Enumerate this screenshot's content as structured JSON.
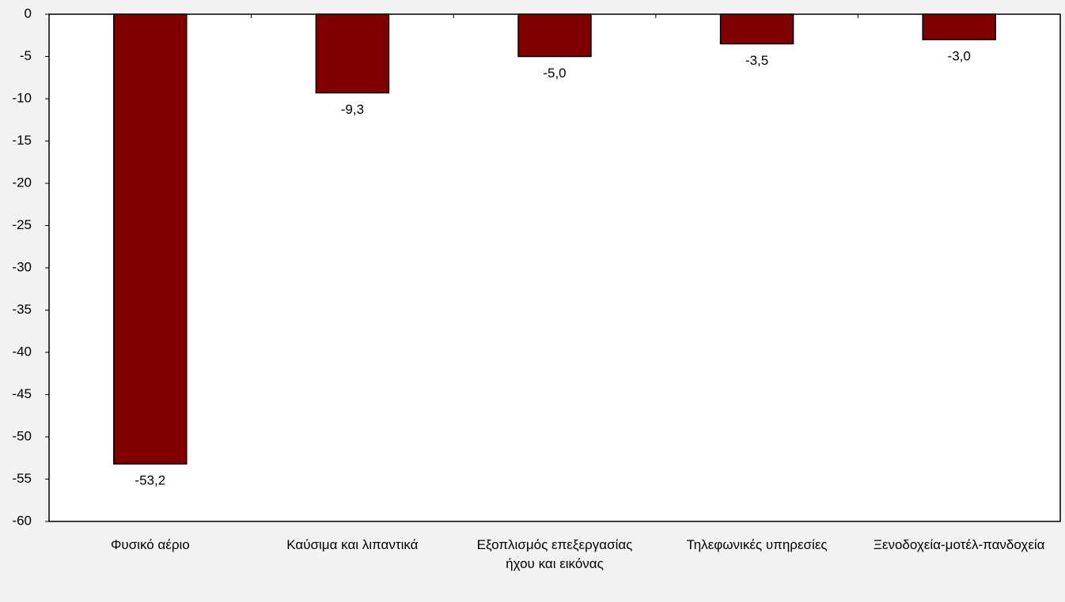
{
  "chart_data": {
    "type": "bar",
    "categories": [
      "Φυσικό αέριο",
      "Καύσιμα και λιπαντικά",
      "Εξοπλισμός επεξεργασίας ήχου και εικόνας",
      "Τηλεφωνικές υπηρεσίες",
      "Ξενοδοχεία-μοτέλ-πανδοχεία"
    ],
    "values": [
      -53.2,
      -9.3,
      -5.0,
      -3.5,
      -3.0
    ],
    "value_labels": [
      "-53,2",
      "-9,3",
      "-5,0",
      "-3,5",
      "-3,0"
    ],
    "color": "#800000",
    "ylim": [
      -60,
      0
    ],
    "yticks": [
      0,
      -5,
      -10,
      -15,
      -20,
      -25,
      -30,
      -35,
      -40,
      -45,
      -50,
      -55,
      -60
    ],
    "grid": false
  }
}
